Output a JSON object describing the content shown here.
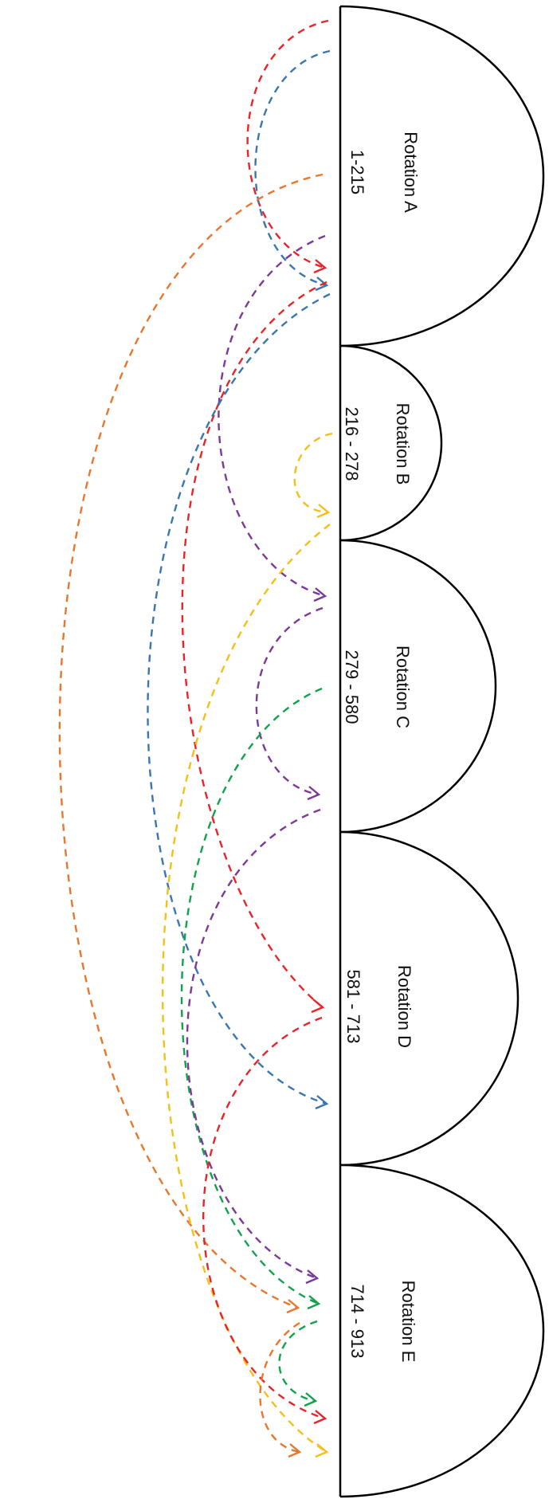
{
  "rotations": [
    {
      "name": "Rotation A",
      "range": "1-215"
    },
    {
      "name": "Rotation B",
      "range": "216 - 278"
    },
    {
      "name": "Rotation C",
      "range": "279 - 580"
    },
    {
      "name": "Rotation D",
      "range": "581 - 713"
    },
    {
      "name": "Rotation E",
      "range": "714 - 913"
    }
  ],
  "colors": {
    "red": "#e8242b",
    "blue": "#3a76b0",
    "orange": "#e8772e",
    "purple": "#7c3a98",
    "yellow": "#f5bf17",
    "green": "#13a24b"
  },
  "connections": [
    {
      "from": "Rotation A",
      "to": "Rotation A",
      "color": "red"
    },
    {
      "from": "Rotation A",
      "to": "Rotation A",
      "color": "blue"
    },
    {
      "from": "Rotation A",
      "to": "Rotation E",
      "color": "orange"
    },
    {
      "from": "Rotation A",
      "to": "Rotation C",
      "color": "purple"
    },
    {
      "from": "Rotation A",
      "to": "Rotation D",
      "color": "red"
    },
    {
      "from": "Rotation A",
      "to": "Rotation D",
      "color": "blue"
    },
    {
      "from": "Rotation B",
      "to": "Rotation B",
      "color": "yellow"
    },
    {
      "from": "Rotation B",
      "to": "Rotation E",
      "color": "yellow"
    },
    {
      "from": "Rotation C",
      "to": "Rotation C",
      "color": "purple"
    },
    {
      "from": "Rotation C",
      "to": "Rotation E",
      "color": "green"
    },
    {
      "from": "Rotation C",
      "to": "Rotation E",
      "color": "purple"
    },
    {
      "from": "Rotation D",
      "to": "Rotation E",
      "color": "red"
    },
    {
      "from": "Rotation E",
      "to": "Rotation E",
      "color": "green"
    },
    {
      "from": "Rotation E",
      "to": "Rotation E",
      "color": "orange"
    }
  ]
}
